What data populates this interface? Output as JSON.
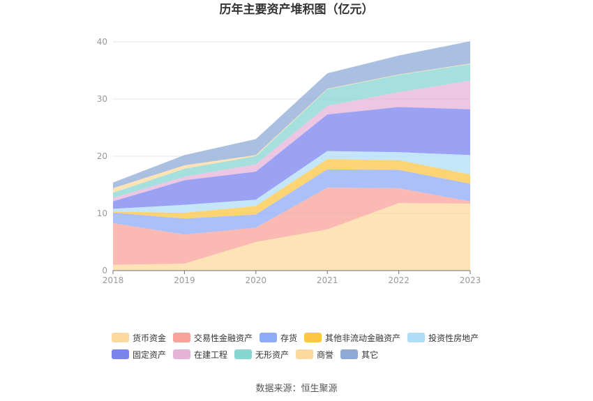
{
  "chart_data": {
    "type": "area",
    "stacked": true,
    "title": "历年主要资产堆积图（亿元）",
    "x": [
      "2018",
      "2019",
      "2020",
      "2021",
      "2022",
      "2023"
    ],
    "ylim": [
      0,
      40
    ],
    "yticks": [
      0,
      10,
      20,
      30,
      40
    ],
    "grid": true,
    "legend_position": "bottom",
    "series": [
      {
        "name": "货币资金",
        "color": "#fcd99e",
        "values": [
          1.0,
          1.2,
          5.0,
          7.2,
          11.8,
          11.7
        ]
      },
      {
        "name": "交易性金融资产",
        "color": "#f8a39a",
        "values": [
          7.3,
          5.1,
          2.5,
          7.3,
          2.6,
          0.4
        ]
      },
      {
        "name": "存货",
        "color": "#8faaf7",
        "values": [
          1.8,
          2.8,
          2.3,
          3.2,
          3.2,
          3.1
        ]
      },
      {
        "name": "其他非流动金融资产",
        "color": "#fbc545",
        "values": [
          0.2,
          1.0,
          1.5,
          1.8,
          1.7,
          1.6
        ]
      },
      {
        "name": "投资性房地产",
        "color": "#b0def6",
        "values": [
          0.5,
          1.4,
          1.1,
          1.4,
          1.4,
          3.4
        ]
      },
      {
        "name": "固定资产",
        "color": "#7b83ef",
        "values": [
          1.3,
          4.3,
          4.9,
          6.4,
          7.9,
          8.0
        ]
      },
      {
        "name": "在建工程",
        "color": "#e6b3d8",
        "values": [
          0.6,
          0.6,
          1.3,
          1.5,
          2.6,
          5.0
        ]
      },
      {
        "name": "无形资产",
        "color": "#88d6d3",
        "values": [
          0.9,
          1.4,
          1.4,
          2.9,
          3.0,
          2.9
        ]
      },
      {
        "name": "商誉",
        "color": "#fcd99e",
        "values": [
          0.8,
          0.6,
          0.2,
          0.1,
          0.1,
          0.1
        ]
      },
      {
        "name": "其它",
        "color": "#8fa9d6",
        "values": [
          1.0,
          1.8,
          2.8,
          2.7,
          3.3,
          3.9
        ]
      }
    ]
  },
  "source": "数据来源：恒生聚源"
}
